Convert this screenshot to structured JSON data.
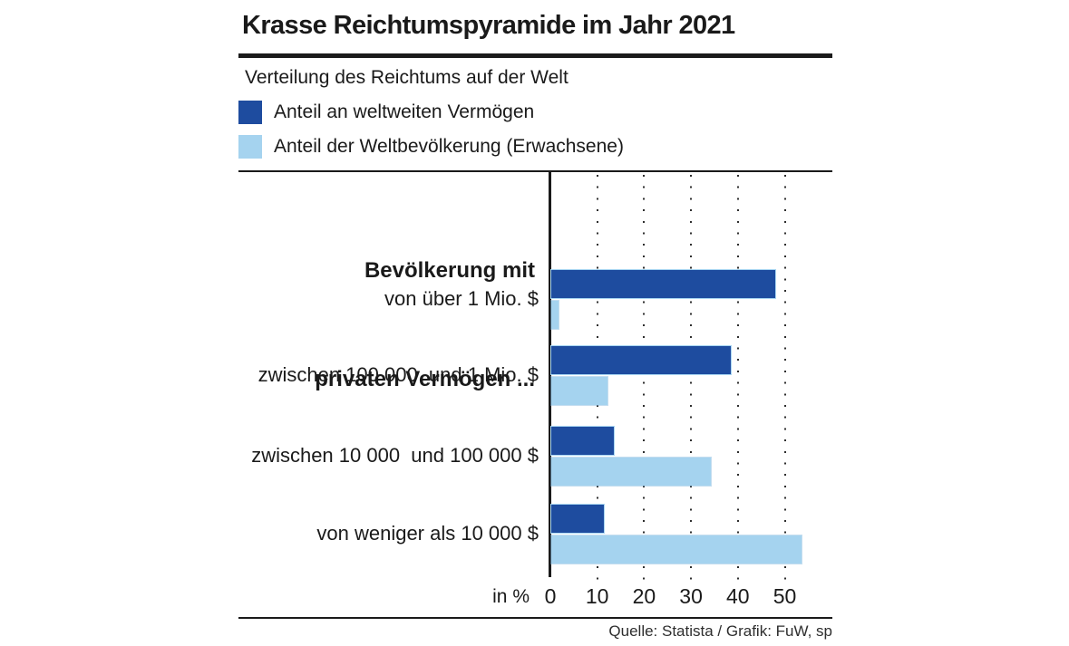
{
  "title": "Krasse Reichtumspyramide im Jahr 2021",
  "subtitle": "Verteilung des Reichtums auf der Welt",
  "legend": [
    {
      "label": "Anteil an weltweiten Vermögen",
      "color": "#1e4c9f"
    },
    {
      "label": "Anteil der Weltbevölkerung (Erwachsene)",
      "color": "#a5d3ef"
    }
  ],
  "source": "Quelle: Statista / Grafik: FuW, sp",
  "chart_data": {
    "type": "bar",
    "orientation": "horizontal",
    "title": "Krasse Reichtumspyramide im Jahr 2021",
    "subtitle": "Verteilung des Reichtums auf der Welt",
    "row_header_lines": [
      "Bevölkerung mit",
      "privaten Vermögen ..."
    ],
    "categories": [
      "von über 1 Mio. $",
      "zwischen 100 000  und 1 Mio. $",
      "zwischen 10 000  und 100 000 $",
      "von weniger als 10 000 $"
    ],
    "series": [
      {
        "name": "Anteil an weltweiten Vermögen",
        "color": "#1e4c9f",
        "values": [
          47.8,
          38.3,
          13.3,
          11.2
        ]
      },
      {
        "name": "Anteil der Weltbevölkerung (Erwachsene)",
        "color": "#a5d3ef",
        "values": [
          1.6,
          12.0,
          34.0,
          53.4
        ]
      }
    ],
    "xlabel": "in %",
    "x_ticks": [
      0,
      10,
      20,
      30,
      40,
      50
    ],
    "xlim": [
      0,
      55
    ],
    "grid": "dotted-vertical",
    "legend_position": "top-left",
    "axis_color": "#1a1a1a"
  }
}
